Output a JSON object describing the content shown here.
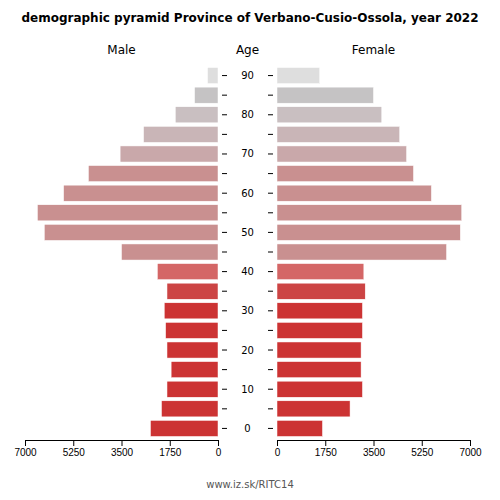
{
  "chart_data": {
    "type": "bar",
    "orientation": "horizontal",
    "title": "demographic pyramid Province of Verbano-Cusio-Ossola, year 2022",
    "ylabel": "Age",
    "annotations": [
      {
        "text": "www.iz.sk/RITC14"
      }
    ],
    "categories": [
      "0",
      null,
      "10",
      null,
      "20",
      null,
      "30",
      null,
      "40",
      null,
      "50",
      null,
      "60",
      null,
      "70",
      null,
      "80",
      null,
      "90"
    ],
    "series": [
      {
        "name": "Male",
        "values": [
          2450,
          2050,
          1850,
          1700,
          1850,
          1900,
          1950,
          1850,
          2200,
          3500,
          6300,
          6550,
          5600,
          4700,
          3550,
          2700,
          1550,
          850,
          380
        ],
        "colors": [
          "#cc3333",
          "#cc3333",
          "#cc3333",
          "#cc3333",
          "#cc3333",
          "#cc3333",
          "#cc3333",
          "#cc4444",
          "#d46666",
          "#c99090",
          "#c99090",
          "#c99090",
          "#c99090",
          "#c99090",
          "#c9a8aa",
          "#c9b5b7",
          "#c9bfc1",
          "#c5c3c4",
          "#dedede"
        ]
      },
      {
        "name": "Female",
        "values": [
          1650,
          2650,
          3100,
          3050,
          3050,
          3100,
          3100,
          3200,
          3150,
          6150,
          6650,
          6700,
          5600,
          4950,
          4700,
          4450,
          3800,
          3500,
          1550
        ],
        "colors": [
          "#cc3333",
          "#cc3333",
          "#cc3333",
          "#cc3333",
          "#cc3333",
          "#cc3333",
          "#cc3333",
          "#cc4444",
          "#d46666",
          "#c99090",
          "#c99090",
          "#c99090",
          "#c99090",
          "#c99090",
          "#c9a8aa",
          "#c9b5b7",
          "#c9bfc1",
          "#c5c3c4",
          "#dedede"
        ]
      }
    ],
    "xlim": [
      0,
      7000
    ],
    "xticks": [
      0,
      1750,
      3500,
      5250,
      7000
    ]
  }
}
